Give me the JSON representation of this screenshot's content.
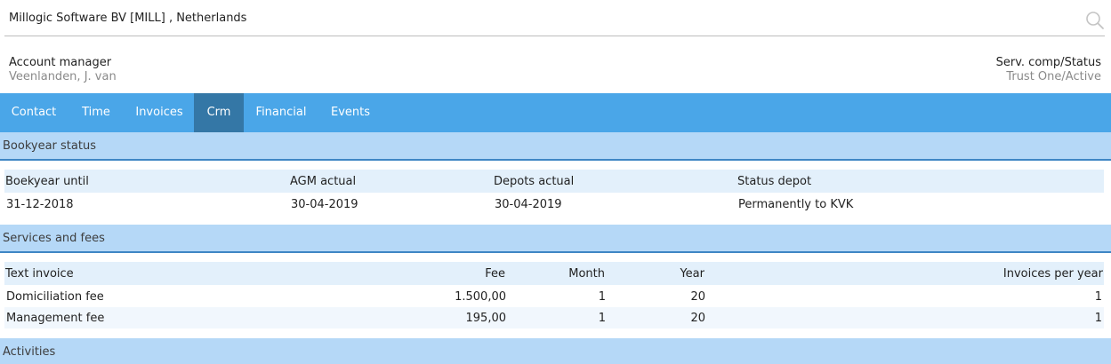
{
  "search": {
    "value": "Millogic Software BV [MILL] , Netherlands"
  },
  "account": {
    "label": "Account manager",
    "value": "Veenlanden, J. van"
  },
  "service": {
    "label": "Serv. comp/Status",
    "value": "Trust One/Active"
  },
  "tabs": [
    {
      "label": "Contact"
    },
    {
      "label": "Time"
    },
    {
      "label": "Invoices"
    },
    {
      "label": "Crm"
    },
    {
      "label": "Financial"
    },
    {
      "label": "Events"
    }
  ],
  "active_tab": "Crm",
  "bookyear": {
    "title": "Bookyear status",
    "headers": [
      "Boekyear until",
      "AGM actual",
      "Depots actual",
      "Status depot"
    ],
    "row": [
      "31-12-2018",
      "30-04-2019",
      "30-04-2019",
      "Permanently to KVK"
    ]
  },
  "services": {
    "title": "Services and fees",
    "headers": [
      "Text invoice",
      "Fee",
      "Month",
      "Year",
      "Invoices per year"
    ],
    "rows": [
      [
        "Domiciliation fee",
        "1.500,00",
        "1",
        "20",
        "1"
      ],
      [
        "Management fee",
        "195,00",
        "1",
        "20",
        "1"
      ]
    ]
  },
  "activities": {
    "title": "Activities"
  },
  "colors": {
    "tab_bar": "#4aa6e8",
    "tab_active": "#3477a6",
    "section_bg": "#b5d8f7",
    "section_line": "#3f86c4"
  }
}
